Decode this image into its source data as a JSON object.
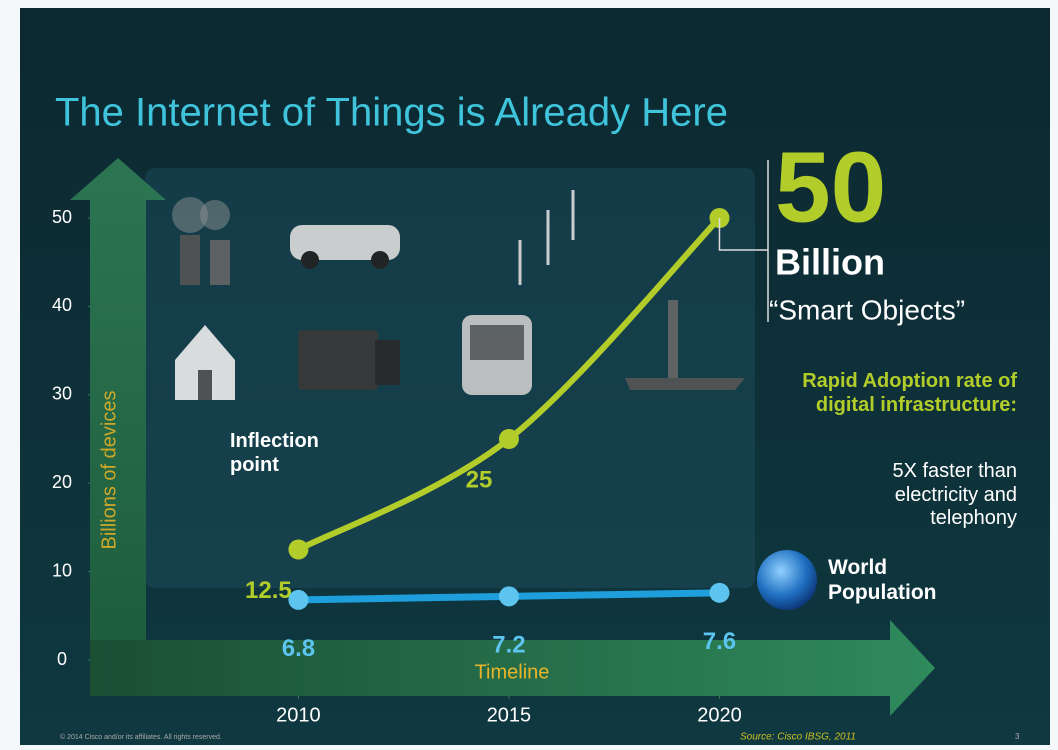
{
  "chart_data": {
    "type": "line",
    "title": "The Internet of Things is Already Here",
    "y_label": "Billions of devices",
    "x_label": "Timeline",
    "x": [
      2010,
      2015,
      2020
    ],
    "xlim": [
      2006,
      2025
    ],
    "xticks": [
      2010,
      2015,
      2020
    ],
    "ylim": [
      0,
      50
    ],
    "yticks": [
      0,
      10,
      20,
      30,
      40,
      50
    ],
    "series": [
      {
        "name": "Smart Objects",
        "printed_name": "“Smart Objects”",
        "color": "#b2cc2a",
        "values": [
          12.5,
          25,
          50
        ]
      },
      {
        "name": "World Population",
        "color": "#1e9fdc",
        "values": [
          6.8,
          7.2,
          7.6
        ]
      }
    ],
    "headline": {
      "value_unit": "Billion"
    },
    "annotations": {
      "inflection": "Inflection point",
      "adoption_heading": "Rapid Adoption rate of digital infrastructure:",
      "adoption_body": "5X faster than electricity and telephony"
    },
    "source": "Source: Cisco IBSG, 2011",
    "copyright": "© 2014 Cisco and/or its affiliates. All rights reserved.",
    "page_number": "3"
  }
}
